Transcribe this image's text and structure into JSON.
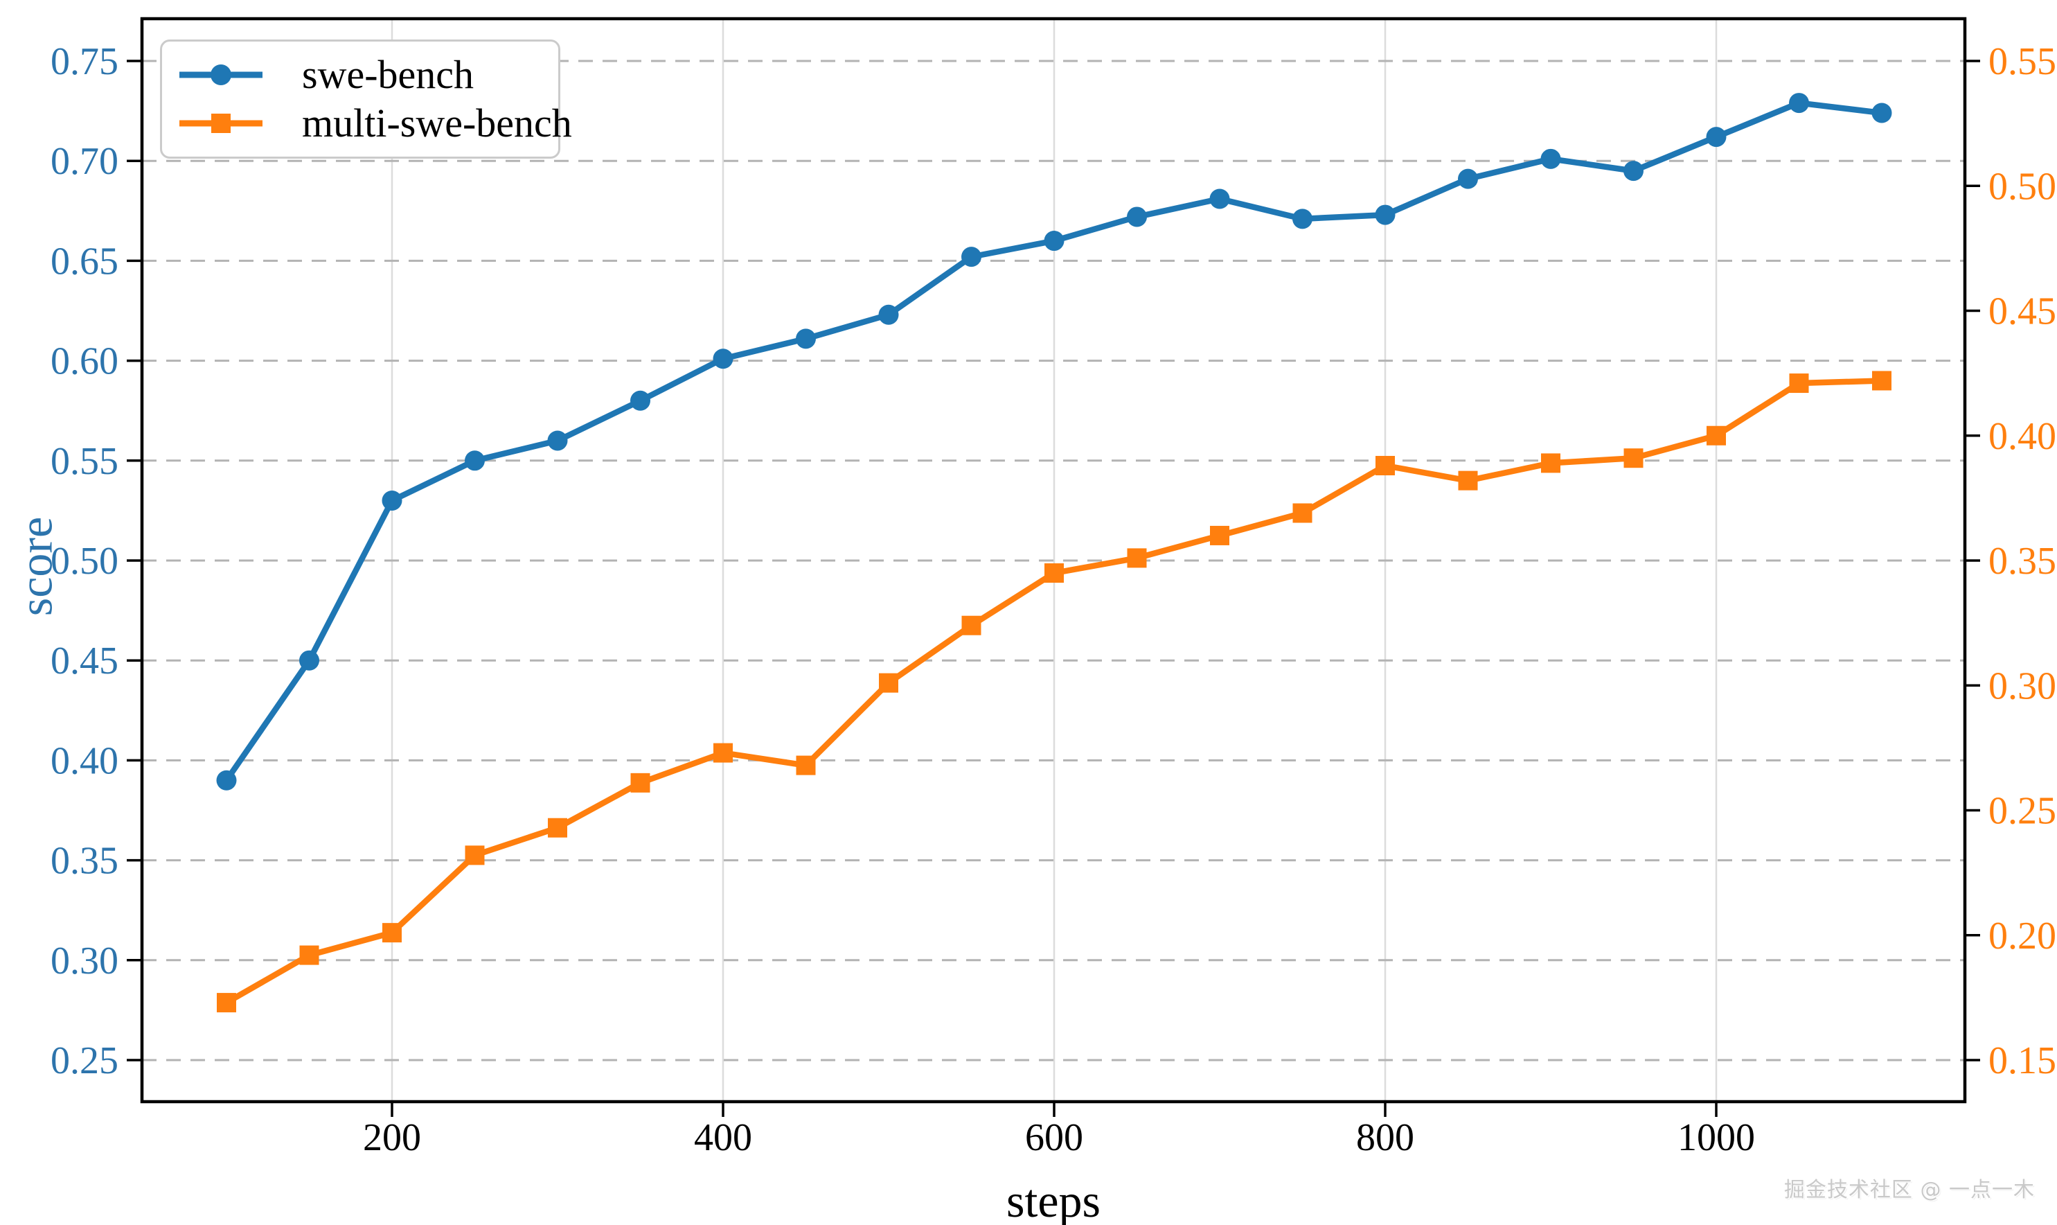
{
  "chart_data": {
    "type": "line",
    "title": "",
    "xlabel": "steps",
    "ylabel_left": "score",
    "ylabel_right": "",
    "x": [
      100,
      150,
      200,
      250,
      300,
      350,
      400,
      450,
      500,
      550,
      600,
      650,
      700,
      750,
      800,
      850,
      900,
      950,
      1000,
      1050,
      1100
    ],
    "x_ticks": [
      200,
      400,
      600,
      800,
      1000
    ],
    "xlim": [
      50,
      1150
    ],
    "left_axis": {
      "ticks": [
        0.25,
        0.3,
        0.35,
        0.4,
        0.45,
        0.5,
        0.55,
        0.6,
        0.65,
        0.7,
        0.75
      ],
      "color": "#2d74ac",
      "ylim": [
        0.229,
        0.771
      ]
    },
    "right_axis": {
      "ticks": [
        0.15,
        0.2,
        0.25,
        0.3,
        0.35,
        0.4,
        0.45,
        0.5,
        0.55
      ],
      "color": "#ff7f0e",
      "ylim": [
        0.133,
        0.567
      ]
    },
    "grid": {
      "horizontal": "dashed",
      "vertical": "solid",
      "h_color": "#b3b3b3",
      "v_color": "#dcdcdc"
    },
    "legend": {
      "position": "upper-left",
      "border_color": "#cbcbcb"
    },
    "series": [
      {
        "name": "swe-bench",
        "axis": "left",
        "color": "#1f77b4",
        "marker": "circle",
        "values": [
          0.39,
          0.45,
          0.53,
          0.55,
          0.56,
          0.58,
          0.601,
          0.611,
          0.623,
          0.652,
          0.66,
          0.672,
          0.681,
          0.671,
          0.673,
          0.691,
          0.701,
          0.695,
          0.712,
          0.729,
          0.724
        ]
      },
      {
        "name": "multi-swe-bench",
        "axis": "right",
        "color": "#ff7f0e",
        "marker": "square",
        "values": [
          0.173,
          0.192,
          0.201,
          0.232,
          0.243,
          0.261,
          0.273,
          0.268,
          0.301,
          0.324,
          0.345,
          0.351,
          0.36,
          0.369,
          0.388,
          0.382,
          0.389,
          0.391,
          0.4,
          0.421,
          0.422
        ]
      }
    ]
  },
  "watermark": "掘金技术社区 @ 一点一木"
}
